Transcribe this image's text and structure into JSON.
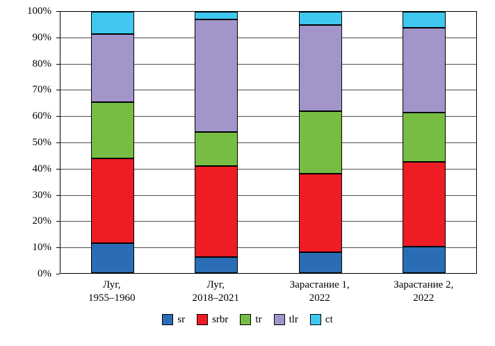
{
  "chart_data": {
    "type": "bar",
    "stacked": true,
    "percent": true,
    "title": "",
    "xlabel": "",
    "ylabel": "",
    "ylim": [
      0,
      100
    ],
    "ytick_step": 10,
    "ytick_suffix": "%",
    "grid": true,
    "legend_position": "bottom",
    "categories": [
      [
        "Луг,",
        "1955–1960"
      ],
      [
        "Луг,",
        "2018–2021"
      ],
      [
        "Зарастание 1,",
        "2022"
      ],
      [
        "Зарастание 2,",
        "2022"
      ]
    ],
    "series": [
      {
        "name": "sr",
        "color": "#2a6db5",
        "values": [
          11.5,
          6,
          8,
          10
        ]
      },
      {
        "name": "srbr",
        "color": "#ee1c25",
        "values": [
          32.5,
          35,
          30,
          32.5
        ]
      },
      {
        "name": "tr",
        "color": "#77bd43",
        "values": [
          21.5,
          13,
          24,
          19
        ]
      },
      {
        "name": "tlr",
        "color": "#a195ca",
        "values": [
          26,
          43,
          33,
          32.5
        ]
      },
      {
        "name": "ct",
        "color": "#40c7f0",
        "values": [
          8.5,
          3,
          5,
          6
        ]
      }
    ]
  }
}
